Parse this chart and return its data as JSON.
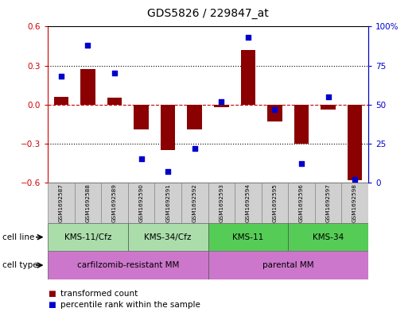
{
  "title": "GDS5826 / 229847_at",
  "samples": [
    "GSM1692587",
    "GSM1692588",
    "GSM1692589",
    "GSM1692590",
    "GSM1692591",
    "GSM1692592",
    "GSM1692593",
    "GSM1692594",
    "GSM1692595",
    "GSM1692596",
    "GSM1692597",
    "GSM1692598"
  ],
  "transformed_count": [
    0.06,
    0.27,
    0.05,
    -0.19,
    -0.35,
    -0.19,
    -0.02,
    0.42,
    -0.13,
    -0.3,
    -0.04,
    -0.58
  ],
  "percentile_rank": [
    68,
    88,
    70,
    15,
    7,
    22,
    52,
    93,
    47,
    12,
    55,
    2
  ],
  "ylim_left": [
    -0.6,
    0.6
  ],
  "ylim_right": [
    0,
    100
  ],
  "yticks_left": [
    -0.6,
    -0.3,
    0.0,
    0.3,
    0.6
  ],
  "yticks_right": [
    0,
    25,
    50,
    75,
    100
  ],
  "bar_color": "#8B0000",
  "dot_color": "#0000CD",
  "cell_line_groups": [
    {
      "label": "KMS-11/Cfz",
      "start": 0,
      "end": 3,
      "color": "#AADDAA"
    },
    {
      "label": "KMS-34/Cfz",
      "start": 3,
      "end": 6,
      "color": "#AADDAA"
    },
    {
      "label": "KMS-11",
      "start": 6,
      "end": 9,
      "color": "#55CC55"
    },
    {
      "label": "KMS-34",
      "start": 9,
      "end": 12,
      "color": "#55CC55"
    }
  ],
  "cell_type_groups": [
    {
      "label": "carfilzomib-resistant MM",
      "start": 0,
      "end": 6,
      "color": "#CC77CC"
    },
    {
      "label": "parental MM",
      "start": 6,
      "end": 12,
      "color": "#CC77CC"
    }
  ],
  "cell_line_row_label": "cell line",
  "cell_type_row_label": "cell type",
  "legend_items": [
    {
      "color": "#8B0000",
      "label": "transformed count"
    },
    {
      "color": "#0000CD",
      "label": "percentile rank within the sample"
    }
  ],
  "grid_color": "black",
  "zero_line_color": "#CC0000",
  "background_color": "#FFFFFF",
  "plot_bg_color": "#FFFFFF"
}
